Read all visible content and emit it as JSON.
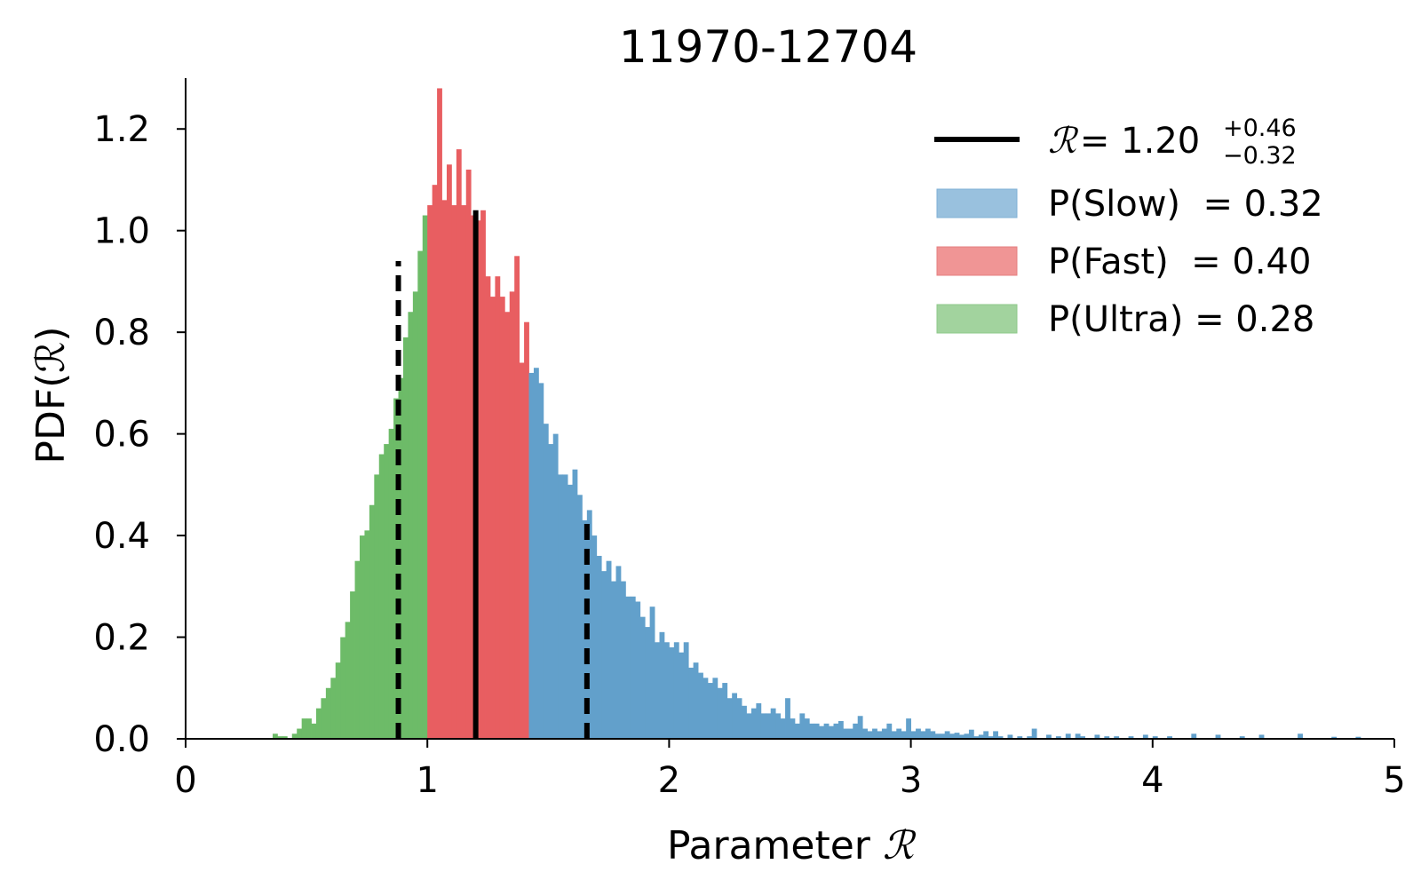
{
  "chart_data": {
    "type": "bar",
    "title": "11970-12704",
    "xlabel": "Parameter",
    "xlabel_symbol": "ℛ",
    "ylabel": "PDF(ℛ)",
    "xlim": [
      0,
      5
    ],
    "ylim": [
      0,
      1.3
    ],
    "xticks": [
      "0",
      "1",
      "2",
      "3",
      "4",
      "5"
    ],
    "yticks": [
      "0.0",
      "0.2",
      "0.4",
      "0.6",
      "0.8",
      "1.0",
      "1.2"
    ],
    "grid": false,
    "legend_position": "top-right",
    "bin_width": 0.02,
    "regions": [
      {
        "name": "Ultra",
        "color": "#6dbb68",
        "range": [
          0,
          1.0
        ]
      },
      {
        "name": "Fast",
        "color": "#e85e61",
        "range": [
          1.0,
          1.41
        ]
      },
      {
        "name": "Slow",
        "color": "#62a0cb",
        "range": [
          1.41,
          5.0
        ]
      }
    ],
    "bins": [
      {
        "x": 0.36,
        "y": 0.01
      },
      {
        "x": 0.38,
        "y": 0.005
      },
      {
        "x": 0.4,
        "y": 0.005
      },
      {
        "x": 0.44,
        "y": 0.01
      },
      {
        "x": 0.46,
        "y": 0.02
      },
      {
        "x": 0.48,
        "y": 0.04
      },
      {
        "x": 0.5,
        "y": 0.04
      },
      {
        "x": 0.52,
        "y": 0.03
      },
      {
        "x": 0.54,
        "y": 0.06
      },
      {
        "x": 0.56,
        "y": 0.08
      },
      {
        "x": 0.58,
        "y": 0.1
      },
      {
        "x": 0.6,
        "y": 0.12
      },
      {
        "x": 0.62,
        "y": 0.15
      },
      {
        "x": 0.64,
        "y": 0.2
      },
      {
        "x": 0.66,
        "y": 0.23
      },
      {
        "x": 0.68,
        "y": 0.29
      },
      {
        "x": 0.7,
        "y": 0.35
      },
      {
        "x": 0.72,
        "y": 0.4
      },
      {
        "x": 0.74,
        "y": 0.41
      },
      {
        "x": 0.76,
        "y": 0.46
      },
      {
        "x": 0.78,
        "y": 0.52
      },
      {
        "x": 0.8,
        "y": 0.56
      },
      {
        "x": 0.82,
        "y": 0.58
      },
      {
        "x": 0.84,
        "y": 0.61
      },
      {
        "x": 0.86,
        "y": 0.67
      },
      {
        "x": 0.88,
        "y": 0.71
      },
      {
        "x": 0.9,
        "y": 0.79
      },
      {
        "x": 0.92,
        "y": 0.84
      },
      {
        "x": 0.94,
        "y": 0.88
      },
      {
        "x": 0.96,
        "y": 0.96
      },
      {
        "x": 0.98,
        "y": 1.03
      },
      {
        "x": 1.0,
        "y": 1.05
      },
      {
        "x": 1.02,
        "y": 1.09
      },
      {
        "x": 1.04,
        "y": 1.28
      },
      {
        "x": 1.06,
        "y": 1.06
      },
      {
        "x": 1.08,
        "y": 1.13
      },
      {
        "x": 1.1,
        "y": 1.05
      },
      {
        "x": 1.12,
        "y": 1.16
      },
      {
        "x": 1.14,
        "y": 1.05
      },
      {
        "x": 1.16,
        "y": 1.12
      },
      {
        "x": 1.18,
        "y": 1.03
      },
      {
        "x": 1.2,
        "y": 1.02
      },
      {
        "x": 1.22,
        "y": 1.04
      },
      {
        "x": 1.24,
        "y": 0.91
      },
      {
        "x": 1.26,
        "y": 0.87
      },
      {
        "x": 1.28,
        "y": 0.91
      },
      {
        "x": 1.3,
        "y": 0.87
      },
      {
        "x": 1.32,
        "y": 0.84
      },
      {
        "x": 1.34,
        "y": 0.88
      },
      {
        "x": 1.36,
        "y": 0.95
      },
      {
        "x": 1.38,
        "y": 0.74
      },
      {
        "x": 1.4,
        "y": 0.82
      },
      {
        "x": 1.42,
        "y": 0.72
      },
      {
        "x": 1.44,
        "y": 0.73
      },
      {
        "x": 1.46,
        "y": 0.7
      },
      {
        "x": 1.48,
        "y": 0.62
      },
      {
        "x": 1.5,
        "y": 0.58
      },
      {
        "x": 1.52,
        "y": 0.6
      },
      {
        "x": 1.54,
        "y": 0.52
      },
      {
        "x": 1.56,
        "y": 0.52
      },
      {
        "x": 1.58,
        "y": 0.5
      },
      {
        "x": 1.6,
        "y": 0.53
      },
      {
        "x": 1.62,
        "y": 0.48
      },
      {
        "x": 1.64,
        "y": 0.43
      },
      {
        "x": 1.66,
        "y": 0.45
      },
      {
        "x": 1.68,
        "y": 0.4
      },
      {
        "x": 1.7,
        "y": 0.36
      },
      {
        "x": 1.72,
        "y": 0.33
      },
      {
        "x": 1.74,
        "y": 0.35
      },
      {
        "x": 1.76,
        "y": 0.31
      },
      {
        "x": 1.78,
        "y": 0.34
      },
      {
        "x": 1.8,
        "y": 0.31
      },
      {
        "x": 1.82,
        "y": 0.28
      },
      {
        "x": 1.84,
        "y": 0.28
      },
      {
        "x": 1.86,
        "y": 0.27
      },
      {
        "x": 1.88,
        "y": 0.24
      },
      {
        "x": 1.9,
        "y": 0.22
      },
      {
        "x": 1.92,
        "y": 0.26
      },
      {
        "x": 1.94,
        "y": 0.19
      },
      {
        "x": 1.96,
        "y": 0.21
      },
      {
        "x": 1.98,
        "y": 0.19
      },
      {
        "x": 2.0,
        "y": 0.18
      },
      {
        "x": 2.02,
        "y": 0.19
      },
      {
        "x": 2.04,
        "y": 0.17
      },
      {
        "x": 2.06,
        "y": 0.19
      },
      {
        "x": 2.08,
        "y": 0.14
      },
      {
        "x": 2.1,
        "y": 0.15
      },
      {
        "x": 2.12,
        "y": 0.13
      },
      {
        "x": 2.14,
        "y": 0.12
      },
      {
        "x": 2.16,
        "y": 0.11
      },
      {
        "x": 2.18,
        "y": 0.12
      },
      {
        "x": 2.2,
        "y": 0.1
      },
      {
        "x": 2.22,
        "y": 0.11
      },
      {
        "x": 2.24,
        "y": 0.08
      },
      {
        "x": 2.26,
        "y": 0.09
      },
      {
        "x": 2.28,
        "y": 0.08
      },
      {
        "x": 2.3,
        "y": 0.065
      },
      {
        "x": 2.32,
        "y": 0.05
      },
      {
        "x": 2.34,
        "y": 0.06
      },
      {
        "x": 2.36,
        "y": 0.07
      },
      {
        "x": 2.38,
        "y": 0.05
      },
      {
        "x": 2.4,
        "y": 0.05
      },
      {
        "x": 2.42,
        "y": 0.06
      },
      {
        "x": 2.44,
        "y": 0.05
      },
      {
        "x": 2.46,
        "y": 0.04
      },
      {
        "x": 2.48,
        "y": 0.08
      },
      {
        "x": 2.5,
        "y": 0.04
      },
      {
        "x": 2.52,
        "y": 0.03
      },
      {
        "x": 2.54,
        "y": 0.05
      },
      {
        "x": 2.56,
        "y": 0.04
      },
      {
        "x": 2.58,
        "y": 0.03
      },
      {
        "x": 2.6,
        "y": 0.03
      },
      {
        "x": 2.62,
        "y": 0.025
      },
      {
        "x": 2.64,
        "y": 0.03
      },
      {
        "x": 2.66,
        "y": 0.025
      },
      {
        "x": 2.68,
        "y": 0.03
      },
      {
        "x": 2.7,
        "y": 0.035
      },
      {
        "x": 2.72,
        "y": 0.02
      },
      {
        "x": 2.74,
        "y": 0.02
      },
      {
        "x": 2.76,
        "y": 0.03
      },
      {
        "x": 2.78,
        "y": 0.045
      },
      {
        "x": 2.8,
        "y": 0.02
      },
      {
        "x": 2.82,
        "y": 0.015
      },
      {
        "x": 2.84,
        "y": 0.02
      },
      {
        "x": 2.86,
        "y": 0.015
      },
      {
        "x": 2.88,
        "y": 0.02
      },
      {
        "x": 2.9,
        "y": 0.03
      },
      {
        "x": 2.92,
        "y": 0.015
      },
      {
        "x": 2.94,
        "y": 0.02
      },
      {
        "x": 2.96,
        "y": 0.015
      },
      {
        "x": 2.98,
        "y": 0.04
      },
      {
        "x": 3.0,
        "y": 0.015
      },
      {
        "x": 3.02,
        "y": 0.02
      },
      {
        "x": 3.04,
        "y": 0.015
      },
      {
        "x": 3.06,
        "y": 0.02
      },
      {
        "x": 3.08,
        "y": 0.015
      },
      {
        "x": 3.1,
        "y": 0.01
      },
      {
        "x": 3.12,
        "y": 0.01
      },
      {
        "x": 3.14,
        "y": 0.015
      },
      {
        "x": 3.16,
        "y": 0.01
      },
      {
        "x": 3.18,
        "y": 0.012
      },
      {
        "x": 3.2,
        "y": 0.008
      },
      {
        "x": 3.22,
        "y": 0.01
      },
      {
        "x": 3.24,
        "y": 0.018
      },
      {
        "x": 3.26,
        "y": 0.005
      },
      {
        "x": 3.28,
        "y": 0.008
      },
      {
        "x": 3.3,
        "y": 0.015
      },
      {
        "x": 3.32,
        "y": 0.005
      },
      {
        "x": 3.34,
        "y": 0.015
      },
      {
        "x": 3.36,
        "y": 0.005
      },
      {
        "x": 3.4,
        "y": 0.008
      },
      {
        "x": 3.44,
        "y": 0.005
      },
      {
        "x": 3.48,
        "y": 0.005
      },
      {
        "x": 3.5,
        "y": 0.02
      },
      {
        "x": 3.56,
        "y": 0.008
      },
      {
        "x": 3.6,
        "y": 0.005
      },
      {
        "x": 3.64,
        "y": 0.01
      },
      {
        "x": 3.68,
        "y": 0.01
      },
      {
        "x": 3.7,
        "y": 0.005
      },
      {
        "x": 3.76,
        "y": 0.008
      },
      {
        "x": 3.8,
        "y": 0.005
      },
      {
        "x": 3.84,
        "y": 0.005
      },
      {
        "x": 3.9,
        "y": 0.005
      },
      {
        "x": 3.96,
        "y": 0.008
      },
      {
        "x": 4.0,
        "y": 0.005
      },
      {
        "x": 4.06,
        "y": 0.005
      },
      {
        "x": 4.16,
        "y": 0.01
      },
      {
        "x": 4.26,
        "y": 0.008
      },
      {
        "x": 4.36,
        "y": 0.005
      },
      {
        "x": 4.44,
        "y": 0.008
      },
      {
        "x": 4.6,
        "y": 0.01
      },
      {
        "x": 4.74,
        "y": 0.004
      },
      {
        "x": 4.84,
        "y": 0.004
      }
    ],
    "median_line": {
      "x": 1.2,
      "height": 1.04
    },
    "quantile_lines": [
      {
        "x": 0.88,
        "height": 0.94
      },
      {
        "x": 1.66,
        "height": 0.43
      }
    ],
    "legend": [
      {
        "kind": "line",
        "label_prefix": "= 1.20",
        "sup": "+0.46",
        "sub": "−0.32",
        "color": "#000000"
      },
      {
        "kind": "patch",
        "label": "P(Slow)  = 0.32",
        "color": "#99c1de"
      },
      {
        "kind": "patch",
        "label": "P(Fast)  = 0.40",
        "color": "#f09595"
      },
      {
        "kind": "patch",
        "label": "P(Ultra) = 0.28",
        "color": "#a2d39e"
      }
    ]
  }
}
